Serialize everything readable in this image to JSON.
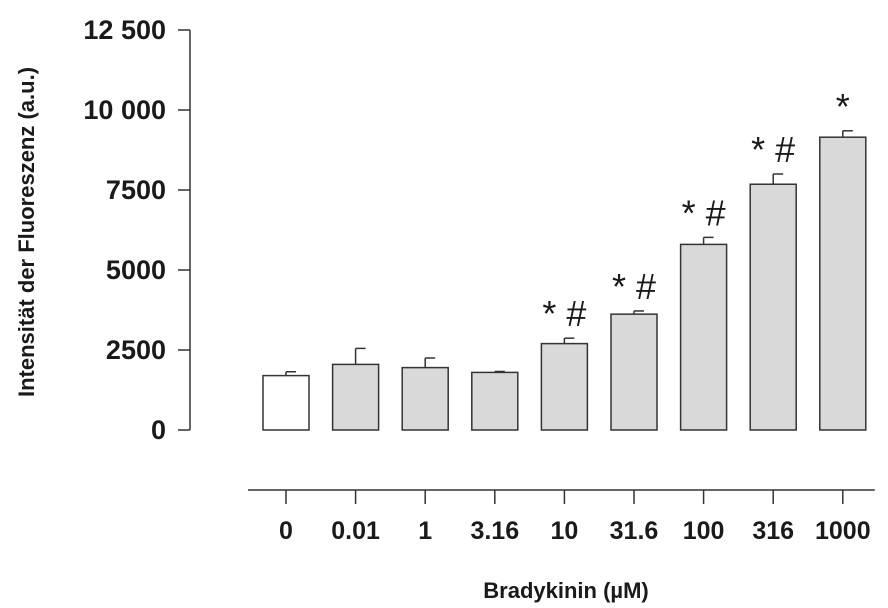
{
  "chart_data": {
    "type": "bar",
    "title": "",
    "xlabel": "Bradykinin (µM)",
    "ylabel": "Intensität der Fluoreszenz (a.u.)",
    "categories": [
      "0",
      "0.01",
      "1",
      "3.16",
      "10",
      "31.6",
      "100",
      "316",
      "1000"
    ],
    "values": [
      1700,
      2050,
      1950,
      1800,
      2700,
      3620,
      5800,
      7680,
      9150
    ],
    "errors": [
      120,
      500,
      300,
      30,
      170,
      100,
      220,
      320,
      200
    ],
    "annotations": [
      "",
      "",
      "",
      "",
      "*#",
      "*#",
      "*#",
      "*#",
      "*"
    ],
    "bar_colors": [
      "#ffffff",
      "#d9d9d9",
      "#d9d9d9",
      "#d9d9d9",
      "#d9d9d9",
      "#d9d9d9",
      "#d9d9d9",
      "#d9d9d9",
      "#d9d9d9"
    ],
    "yticks": [
      0,
      2500,
      5000,
      7500,
      10000,
      12500
    ],
    "ytick_labels": [
      "0",
      "2500",
      "5000",
      "7500",
      "10 000",
      "12 500"
    ],
    "ylim": [
      0,
      12500
    ],
    "grid": false,
    "legend": "none"
  }
}
